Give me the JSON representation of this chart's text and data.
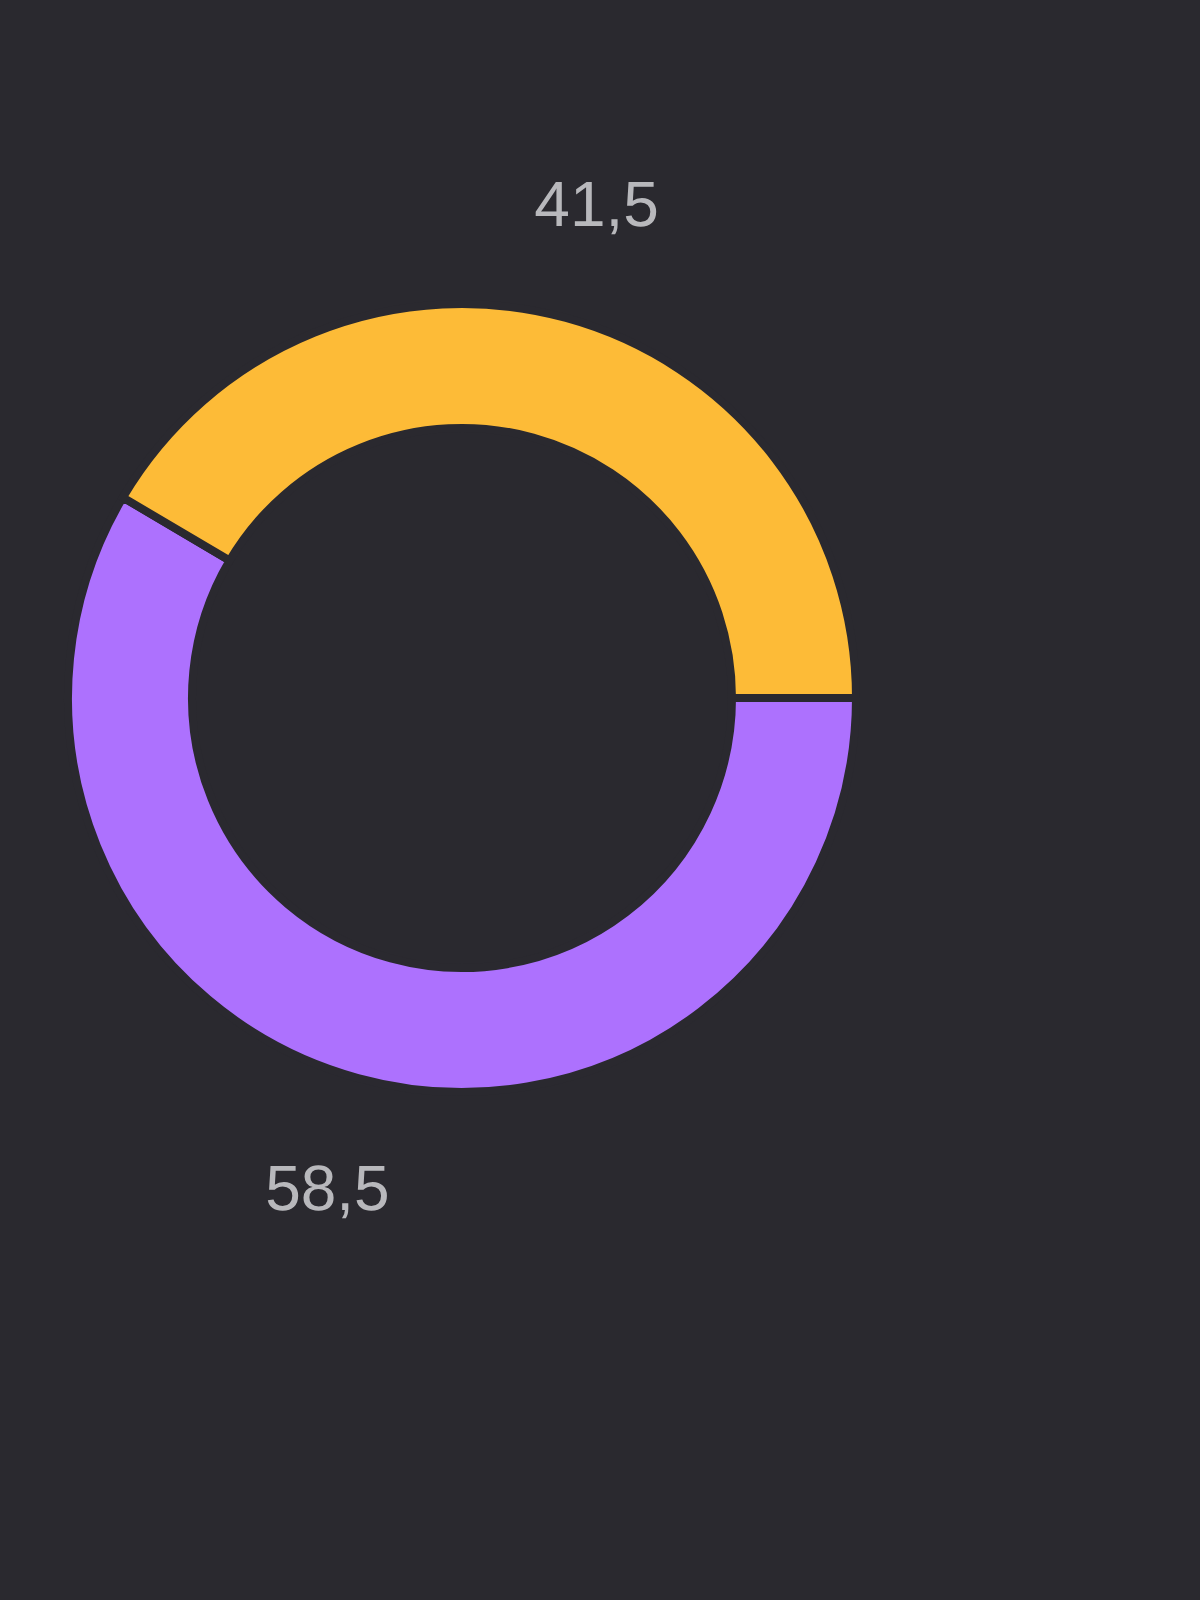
{
  "chart_data": {
    "type": "donut",
    "categories": [
      null,
      null
    ],
    "values": [
      58.5,
      41.5
    ],
    "colors": [
      "#ad71fe",
      "#fdbb37"
    ],
    "value_labels": [
      "58,5",
      "41,5"
    ]
  }
}
